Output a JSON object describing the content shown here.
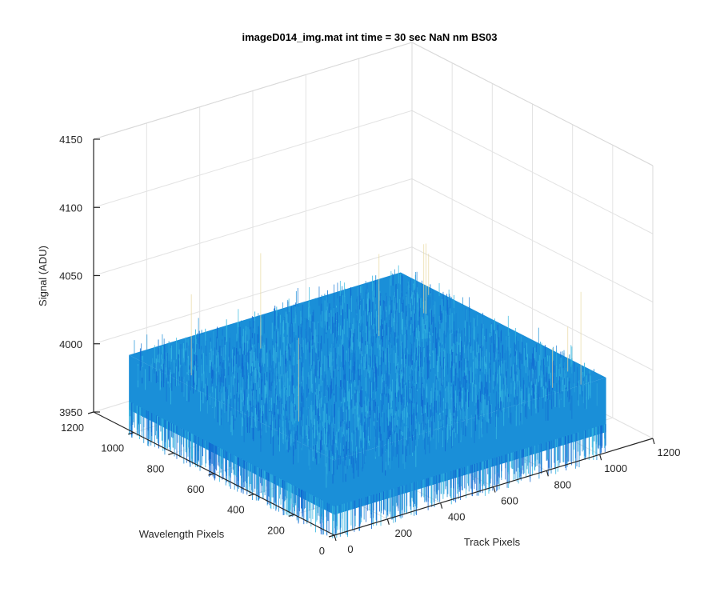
{
  "figure": {
    "title": "imageD014_img.mat int time = 30 sec  NaN nm BS03"
  },
  "chart_data": {
    "type": "surface",
    "title": "imageD014_img.mat int time = 30 sec  NaN nm BS03",
    "xlabel": "Track Pixels",
    "ylabel": "Wavelength Pixels",
    "zlabel": "Signal (ADU)",
    "xlim": [
      0,
      1200
    ],
    "ylim": [
      0,
      1200
    ],
    "zlim": [
      3950,
      4150
    ],
    "x_ticks": [
      0,
      200,
      400,
      600,
      800,
      1000,
      1200
    ],
    "y_ticks": [
      0,
      200,
      400,
      600,
      800,
      1000,
      1200
    ],
    "z_ticks": [
      3950,
      4000,
      4050,
      4100,
      4150
    ],
    "x_tick_labels": [
      "0",
      "200",
      "400",
      "600",
      "800",
      "1000",
      "1200"
    ],
    "y_tick_labels": [
      "0",
      "200",
      "400",
      "600",
      "800",
      "1000",
      "1200"
    ],
    "z_tick_labels": [
      "3950",
      "4000",
      "4050",
      "4100",
      "4150"
    ],
    "surface": {
      "x_range": [
        0,
        1024
      ],
      "y_range": [
        0,
        1024
      ],
      "mean_level": 3985,
      "noise_range": [
        3965,
        4005
      ],
      "colormap": "parula",
      "dominant_color": "#1a8fd8"
    },
    "grid": true,
    "box": "outer"
  },
  "colors": {
    "axis": "#262626",
    "grid": "#e3e3e3",
    "surface_dark": "#1067d1",
    "surface_mid": "#1a8fd8",
    "surface_light": "#35b6e0"
  }
}
